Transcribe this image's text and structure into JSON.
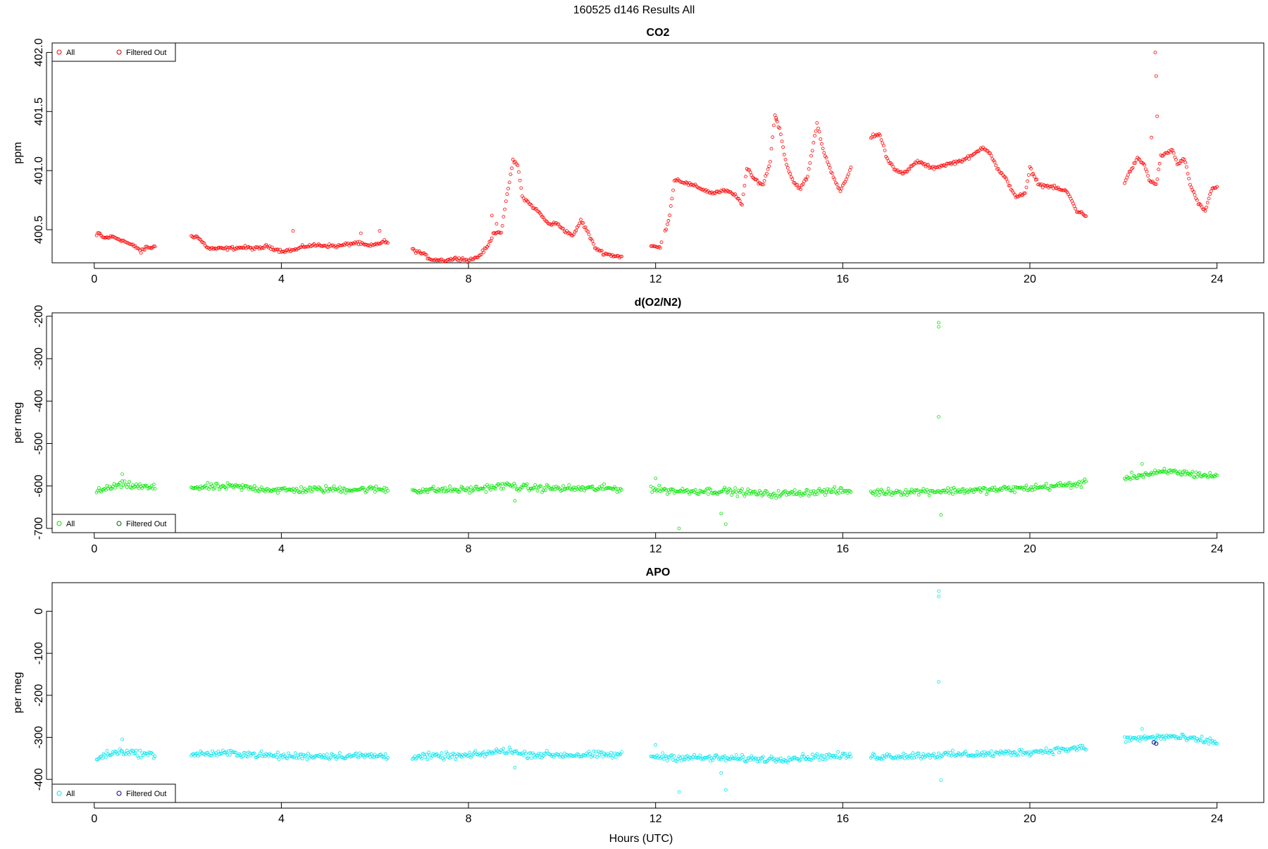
{
  "figure": {
    "title": "160525   d146   Results All",
    "xlabel": "Hours (UTC)"
  },
  "chart_data": [
    {
      "type": "scatter",
      "title": "CO2",
      "xlabel": "",
      "ylabel": "ppm",
      "xlim": [
        -0.9,
        25.0
      ],
      "ylim": [
        400.22,
        402.08
      ],
      "xticks": [
        0,
        4,
        8,
        12,
        16,
        20,
        24
      ],
      "yticks": [
        400.5,
        401.0,
        401.5,
        402.0
      ],
      "ytick_labels": [
        "400.5",
        "401.0",
        "401.5",
        "402.0"
      ],
      "legend": {
        "position": "top-left",
        "entries": [
          {
            "label": "All",
            "color": "#ff0000"
          },
          {
            "label": "Filtered Out",
            "color": "#c00000"
          }
        ]
      },
      "marker_color": "#ff0000",
      "series": [
        {
          "name": "All",
          "color": "#ff0000",
          "gaps": [
            [
              1.3,
              2.05
            ],
            [
              6.3,
              6.8
            ],
            [
              11.3,
              11.9
            ],
            [
              12.15,
              12.2
            ],
            [
              16.2,
              16.6
            ],
            [
              21.2,
              22.0
            ],
            [
              24.0,
              24.1
            ]
          ],
          "anchors": [
            [
              0.05,
              400.45
            ],
            [
              0.1,
              400.47
            ],
            [
              0.2,
              400.43
            ],
            [
              0.4,
              400.44
            ],
            [
              0.6,
              400.41
            ],
            [
              0.8,
              400.37
            ],
            [
              0.95,
              400.34
            ],
            [
              1.0,
              400.31
            ],
            [
              1.1,
              400.35
            ],
            [
              1.25,
              400.35
            ],
            [
              2.05,
              400.45
            ],
            [
              2.2,
              400.44
            ],
            [
              2.3,
              400.4
            ],
            [
              2.45,
              400.34
            ],
            [
              2.8,
              400.34
            ],
            [
              3.2,
              400.35
            ],
            [
              3.5,
              400.34
            ],
            [
              3.7,
              400.36
            ],
            [
              4.0,
              400.32
            ],
            [
              4.3,
              400.33
            ],
            [
              4.5,
              400.36
            ],
            [
              4.8,
              400.37
            ],
            [
              5.2,
              400.36
            ],
            [
              5.6,
              400.39
            ],
            [
              5.9,
              400.36
            ],
            [
              6.2,
              400.4
            ],
            [
              6.8,
              400.33
            ],
            [
              7.0,
              400.3
            ],
            [
              7.2,
              400.25
            ],
            [
              7.5,
              400.24
            ],
            [
              7.8,
              400.26
            ],
            [
              8.0,
              400.24
            ],
            [
              8.2,
              400.27
            ],
            [
              8.4,
              400.35
            ],
            [
              8.55,
              400.48
            ],
            [
              8.7,
              400.48
            ],
            [
              8.85,
              400.85
            ],
            [
              8.95,
              401.08
            ],
            [
              9.05,
              401.05
            ],
            [
              9.15,
              400.78
            ],
            [
              9.3,
              400.72
            ],
            [
              9.5,
              400.65
            ],
            [
              9.7,
              400.55
            ],
            [
              9.9,
              400.55
            ],
            [
              10.1,
              400.48
            ],
            [
              10.25,
              400.45
            ],
            [
              10.4,
              400.58
            ],
            [
              10.55,
              400.48
            ],
            [
              10.7,
              400.35
            ],
            [
              10.9,
              400.3
            ],
            [
              11.1,
              400.28
            ],
            [
              11.3,
              400.27
            ],
            [
              11.9,
              400.36
            ],
            [
              12.1,
              400.35
            ],
            [
              12.3,
              400.62
            ],
            [
              12.4,
              400.92
            ],
            [
              12.5,
              400.92
            ],
            [
              12.6,
              400.9
            ],
            [
              12.9,
              400.86
            ],
            [
              13.2,
              400.81
            ],
            [
              13.5,
              400.83
            ],
            [
              13.7,
              400.79
            ],
            [
              13.85,
              400.72
            ],
            [
              13.95,
              401.02
            ],
            [
              14.1,
              400.93
            ],
            [
              14.3,
              400.88
            ],
            [
              14.45,
              401.08
            ],
            [
              14.55,
              401.48
            ],
            [
              14.65,
              401.35
            ],
            [
              14.8,
              401.05
            ],
            [
              14.95,
              400.9
            ],
            [
              15.1,
              400.85
            ],
            [
              15.25,
              400.95
            ],
            [
              15.45,
              401.4
            ],
            [
              15.6,
              401.15
            ],
            [
              15.8,
              400.95
            ],
            [
              15.95,
              400.82
            ],
            [
              16.1,
              400.95
            ],
            [
              16.2,
              401.05
            ],
            [
              16.65,
              401.3
            ],
            [
              16.8,
              401.3
            ],
            [
              16.95,
              401.1
            ],
            [
              17.1,
              401.02
            ],
            [
              17.3,
              400.97
            ],
            [
              17.6,
              401.08
            ],
            [
              17.9,
              401.02
            ],
            [
              18.2,
              401.05
            ],
            [
              18.5,
              401.08
            ],
            [
              18.75,
              401.12
            ],
            [
              19.0,
              401.2
            ],
            [
              19.15,
              401.15
            ],
            [
              19.3,
              401.02
            ],
            [
              19.5,
              400.92
            ],
            [
              19.7,
              400.78
            ],
            [
              19.9,
              400.8
            ],
            [
              20.0,
              401.02
            ],
            [
              20.2,
              400.88
            ],
            [
              20.5,
              400.86
            ],
            [
              20.8,
              400.82
            ],
            [
              21.0,
              400.66
            ],
            [
              21.2,
              400.62
            ],
            [
              22.0,
              400.88
            ],
            [
              22.15,
              401.0
            ],
            [
              22.3,
              401.1
            ],
            [
              22.45,
              401.05
            ],
            [
              22.55,
              400.92
            ],
            [
              22.7,
              400.88
            ],
            [
              22.8,
              401.12
            ],
            [
              22.95,
              401.15
            ],
            [
              23.05,
              401.18
            ],
            [
              23.15,
              401.05
            ],
            [
              23.3,
              401.1
            ],
            [
              23.45,
              400.85
            ],
            [
              23.6,
              400.72
            ],
            [
              23.75,
              400.66
            ],
            [
              23.9,
              400.86
            ],
            [
              24.0,
              400.86
            ]
          ],
          "noise": 0.012,
          "outliers": [
            [
              22.68,
              402.0
            ],
            [
              22.7,
              401.8
            ],
            [
              22.72,
              401.46
            ],
            [
              22.6,
              401.28
            ],
            [
              8.5,
              400.62
            ],
            [
              8.6,
              400.55
            ],
            [
              14.58,
              401.43
            ],
            [
              4.25,
              400.49
            ],
            [
              5.7,
              400.47
            ],
            [
              6.1,
              400.49
            ]
          ]
        }
      ]
    },
    {
      "type": "scatter",
      "title": "d(O2/N2)",
      "xlabel": "",
      "ylabel": "per meg",
      "xlim": [
        -0.9,
        25.0
      ],
      "ylim": [
        -710,
        -192
      ],
      "xticks": [
        0,
        4,
        8,
        12,
        16,
        20,
        24
      ],
      "yticks": [
        -700,
        -600,
        -500,
        -400,
        -300,
        -200
      ],
      "ytick_labels": [
        "-700",
        "-600",
        "-500",
        "-400",
        "-300",
        "-200"
      ],
      "legend": {
        "position": "bottom-left",
        "entries": [
          {
            "label": "All",
            "color": "#00e600"
          },
          {
            "label": "Filtered Out",
            "color": "#006400"
          }
        ]
      },
      "marker_color": "#00e600",
      "series": [
        {
          "name": "All",
          "color": "#00e600",
          "gaps": [
            [
              1.3,
              2.05
            ],
            [
              6.3,
              6.8
            ],
            [
              11.3,
              11.9
            ],
            [
              16.2,
              16.6
            ],
            [
              21.2,
              22.0
            ],
            [
              24.0,
              24.1
            ]
          ],
          "anchors": [
            [
              0.05,
              -615
            ],
            [
              0.3,
              -605
            ],
            [
              0.6,
              -597
            ],
            [
              0.9,
              -601
            ],
            [
              1.25,
              -605
            ],
            [
              2.05,
              -603
            ],
            [
              3.0,
              -602
            ],
            [
              4.0,
              -610
            ],
            [
              5.0,
              -608
            ],
            [
              6.2,
              -608
            ],
            [
              6.8,
              -610
            ],
            [
              8.0,
              -609
            ],
            [
              8.9,
              -598
            ],
            [
              9.1,
              -604
            ],
            [
              10.0,
              -606
            ],
            [
              11.3,
              -606
            ],
            [
              11.9,
              -607
            ],
            [
              12.5,
              -612
            ],
            [
              13.5,
              -612
            ],
            [
              14.5,
              -620
            ],
            [
              15.5,
              -613
            ],
            [
              16.2,
              -612
            ],
            [
              16.6,
              -615
            ],
            [
              18.0,
              -612
            ],
            [
              19.0,
              -610
            ],
            [
              20.0,
              -605
            ],
            [
              21.2,
              -594
            ],
            [
              22.0,
              -580
            ],
            [
              23.0,
              -566
            ],
            [
              24.0,
              -578
            ]
          ],
          "noise": 7,
          "outliers": [
            [
              18.05,
              -215
            ],
            [
              18.05,
              -225
            ],
            [
              18.05,
              -437
            ],
            [
              18.1,
              -668
            ],
            [
              12.5,
              -700
            ],
            [
              13.5,
              -690
            ],
            [
              13.4,
              -665
            ],
            [
              0.6,
              -572
            ],
            [
              8.99,
              -635
            ],
            [
              12.0,
              -582
            ],
            [
              22.4,
              -548
            ]
          ]
        }
      ]
    },
    {
      "type": "scatter",
      "title": "APO",
      "xlabel": "Hours (UTC)",
      "ylabel": "per meg",
      "xlim": [
        -0.9,
        25.0
      ],
      "ylim": [
        -455,
        68
      ],
      "xticks": [
        0,
        4,
        8,
        12,
        16,
        20,
        24
      ],
      "yticks": [
        -400,
        -300,
        -200,
        -100,
        0
      ],
      "ytick_labels": [
        "-400",
        "-300",
        "-200",
        "-100",
        "0"
      ],
      "legend": {
        "position": "bottom-left",
        "entries": [
          {
            "label": "All",
            "color": "#00e5ee"
          },
          {
            "label": "Filtered Out",
            "color": "#00008b"
          }
        ]
      },
      "marker_color": "#00e5ee",
      "series": [
        {
          "name": "All",
          "color": "#00e5ee",
          "gaps": [
            [
              1.3,
              2.05
            ],
            [
              6.3,
              6.8
            ],
            [
              11.3,
              11.9
            ],
            [
              16.2,
              16.6
            ],
            [
              21.2,
              22.0
            ],
            [
              24.0,
              24.1
            ]
          ],
          "anchors": [
            [
              0.05,
              -350
            ],
            [
              0.3,
              -340
            ],
            [
              0.6,
              -333
            ],
            [
              0.9,
              -338
            ],
            [
              1.25,
              -342
            ],
            [
              2.05,
              -340
            ],
            [
              3.0,
              -338
            ],
            [
              4.0,
              -345
            ],
            [
              5.0,
              -344
            ],
            [
              6.2,
              -344
            ],
            [
              6.8,
              -346
            ],
            [
              8.0,
              -344
            ],
            [
              8.9,
              -330
            ],
            [
              9.1,
              -340
            ],
            [
              10.0,
              -342
            ],
            [
              11.3,
              -342
            ],
            [
              11.9,
              -345
            ],
            [
              12.5,
              -348
            ],
            [
              13.5,
              -350
            ],
            [
              14.5,
              -352
            ],
            [
              15.5,
              -346
            ],
            [
              16.2,
              -344
            ],
            [
              16.6,
              -346
            ],
            [
              18.0,
              -342
            ],
            [
              19.0,
              -340
            ],
            [
              20.0,
              -335
            ],
            [
              21.2,
              -325
            ],
            [
              22.0,
              -305
            ],
            [
              23.0,
              -298
            ],
            [
              24.0,
              -312
            ]
          ],
          "noise": 7,
          "outliers": [
            [
              18.05,
              48
            ],
            [
              18.05,
              35
            ],
            [
              18.05,
              -168
            ],
            [
              18.1,
              -402
            ],
            [
              12.5,
              -430
            ],
            [
              13.5,
              -425
            ],
            [
              13.4,
              -385
            ],
            [
              0.6,
              -305
            ],
            [
              8.99,
              -372
            ],
            [
              12.0,
              -318
            ],
            [
              22.4,
              -280
            ]
          ]
        },
        {
          "name": "Filtered Out",
          "color": "#00008b",
          "points": [
            [
              22.65,
              -312
            ],
            [
              22.7,
              -315
            ]
          ]
        }
      ]
    }
  ]
}
